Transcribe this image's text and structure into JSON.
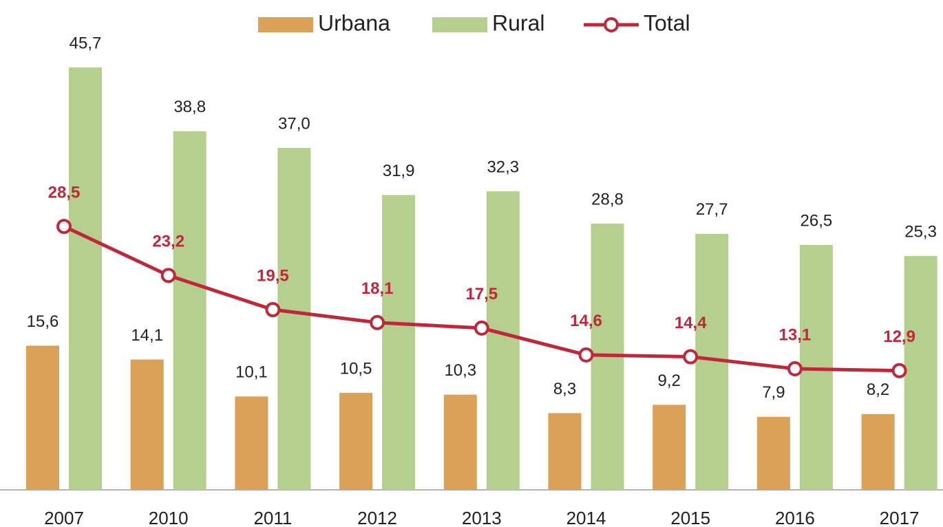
{
  "chart_data": {
    "type": "bar_line",
    "categories": [
      "2007",
      "2010",
      "2011",
      "2012",
      "2013",
      "2014",
      "2015",
      "2016",
      "2017"
    ],
    "series": [
      {
        "name": "Urbana",
        "type": "bar",
        "color": "#dba158",
        "values": [
          15.6,
          14.1,
          10.1,
          10.5,
          10.3,
          8.3,
          9.2,
          7.9,
          8.2
        ],
        "value_labels": [
          "15,6",
          "14,1",
          "10,1",
          "10,5",
          "10,3",
          "8,3",
          "9,2",
          "7,9",
          "8,2"
        ]
      },
      {
        "name": "Rural",
        "type": "bar",
        "color": "#b5d08e",
        "values": [
          45.7,
          38.8,
          37.0,
          31.9,
          32.3,
          28.8,
          27.7,
          26.5,
          25.3
        ],
        "value_labels": [
          "45,7",
          "38,8",
          "37,0",
          "31,9",
          "32,3",
          "28,8",
          "27,7",
          "26,5",
          "25,3"
        ]
      },
      {
        "name": "Total",
        "type": "line",
        "color": "#c0283a",
        "values": [
          28.5,
          23.2,
          19.5,
          18.1,
          17.5,
          14.6,
          14.4,
          13.1,
          12.9
        ],
        "value_labels": [
          "28,5",
          "23,2",
          "19,5",
          "18,1",
          "17,5",
          "14,6",
          "14,4",
          "13,1",
          "12,9"
        ]
      }
    ],
    "ylim": [
      0,
      53
    ]
  }
}
